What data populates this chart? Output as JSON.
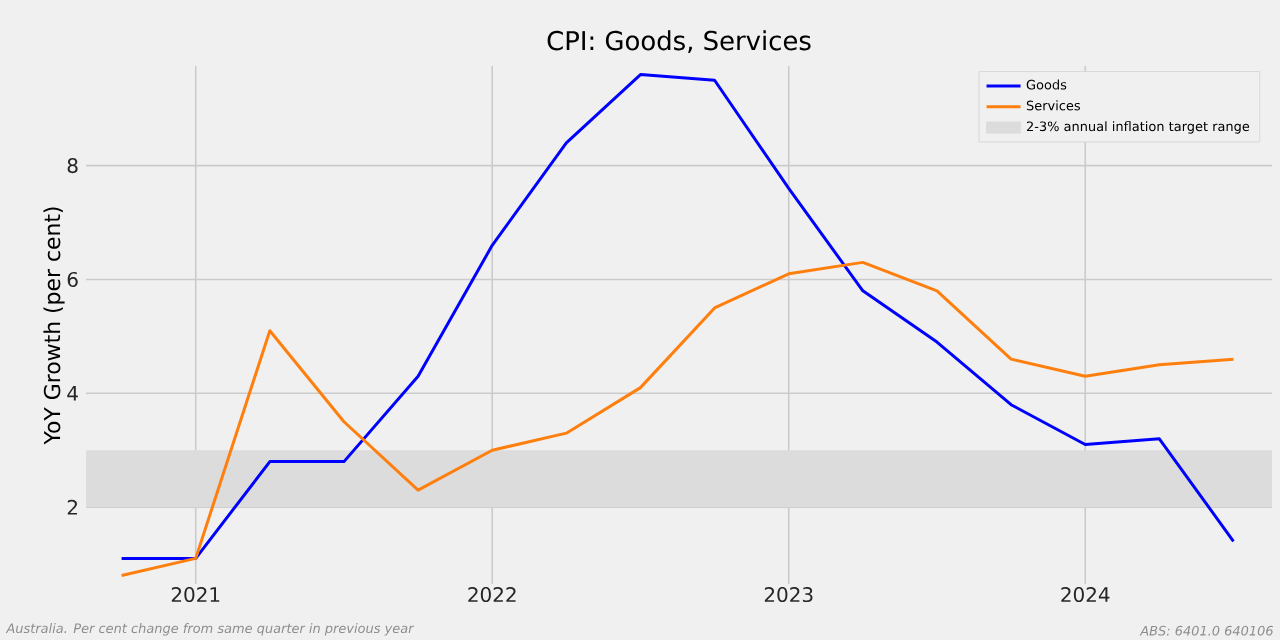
{
  "chart_data": {
    "type": "line",
    "title": "CPI: Goods, Services",
    "ylabel": "YoY Growth (per cent)",
    "x": [
      "2020-10-01",
      "2021-01-01",
      "2021-04-01",
      "2021-07-01",
      "2021-10-01",
      "2022-01-01",
      "2022-04-01",
      "2022-07-01",
      "2022-10-01",
      "2023-01-01",
      "2023-04-01",
      "2023-07-01",
      "2023-10-01",
      "2024-01-01",
      "2024-04-01",
      "2024-07-01"
    ],
    "series": [
      {
        "name": "Goods",
        "color": "#0000ff",
        "values": [
          1.1,
          1.1,
          2.8,
          2.8,
          4.3,
          6.6,
          8.4,
          9.6,
          9.5,
          7.6,
          5.8,
          4.9,
          3.8,
          3.1,
          3.2,
          1.4
        ]
      },
      {
        "name": "Services",
        "color": "#ff7f0e",
        "values": [
          0.8,
          1.1,
          5.1,
          3.5,
          2.3,
          3.0,
          3.3,
          4.1,
          5.5,
          6.1,
          6.3,
          5.8,
          4.6,
          4.3,
          4.5,
          4.6
        ]
      }
    ],
    "xlim": [
      "2020-08-20",
      "2024-08-20"
    ],
    "xticks": [
      {
        "value": "2021-01-01",
        "label": "2021"
      },
      {
        "value": "2022-01-01",
        "label": "2022"
      },
      {
        "value": "2023-01-01",
        "label": "2023"
      },
      {
        "value": "2024-01-01",
        "label": "2024"
      }
    ],
    "ylim": [
      0.65,
      9.75
    ],
    "yticks": [
      2,
      4,
      6,
      8
    ],
    "bands": [
      {
        "axis": "y",
        "from": 2,
        "to": 3,
        "label": "2-3% annual inflation target range",
        "color": "#dcdcdc"
      }
    ],
    "grid": true,
    "legend": "top right",
    "marker": "none",
    "line_style": "solid",
    "annotations": [
      "Australia. Per cent change from same quarter in previous year",
      "ABS: 6401.0 640106"
    ]
  }
}
